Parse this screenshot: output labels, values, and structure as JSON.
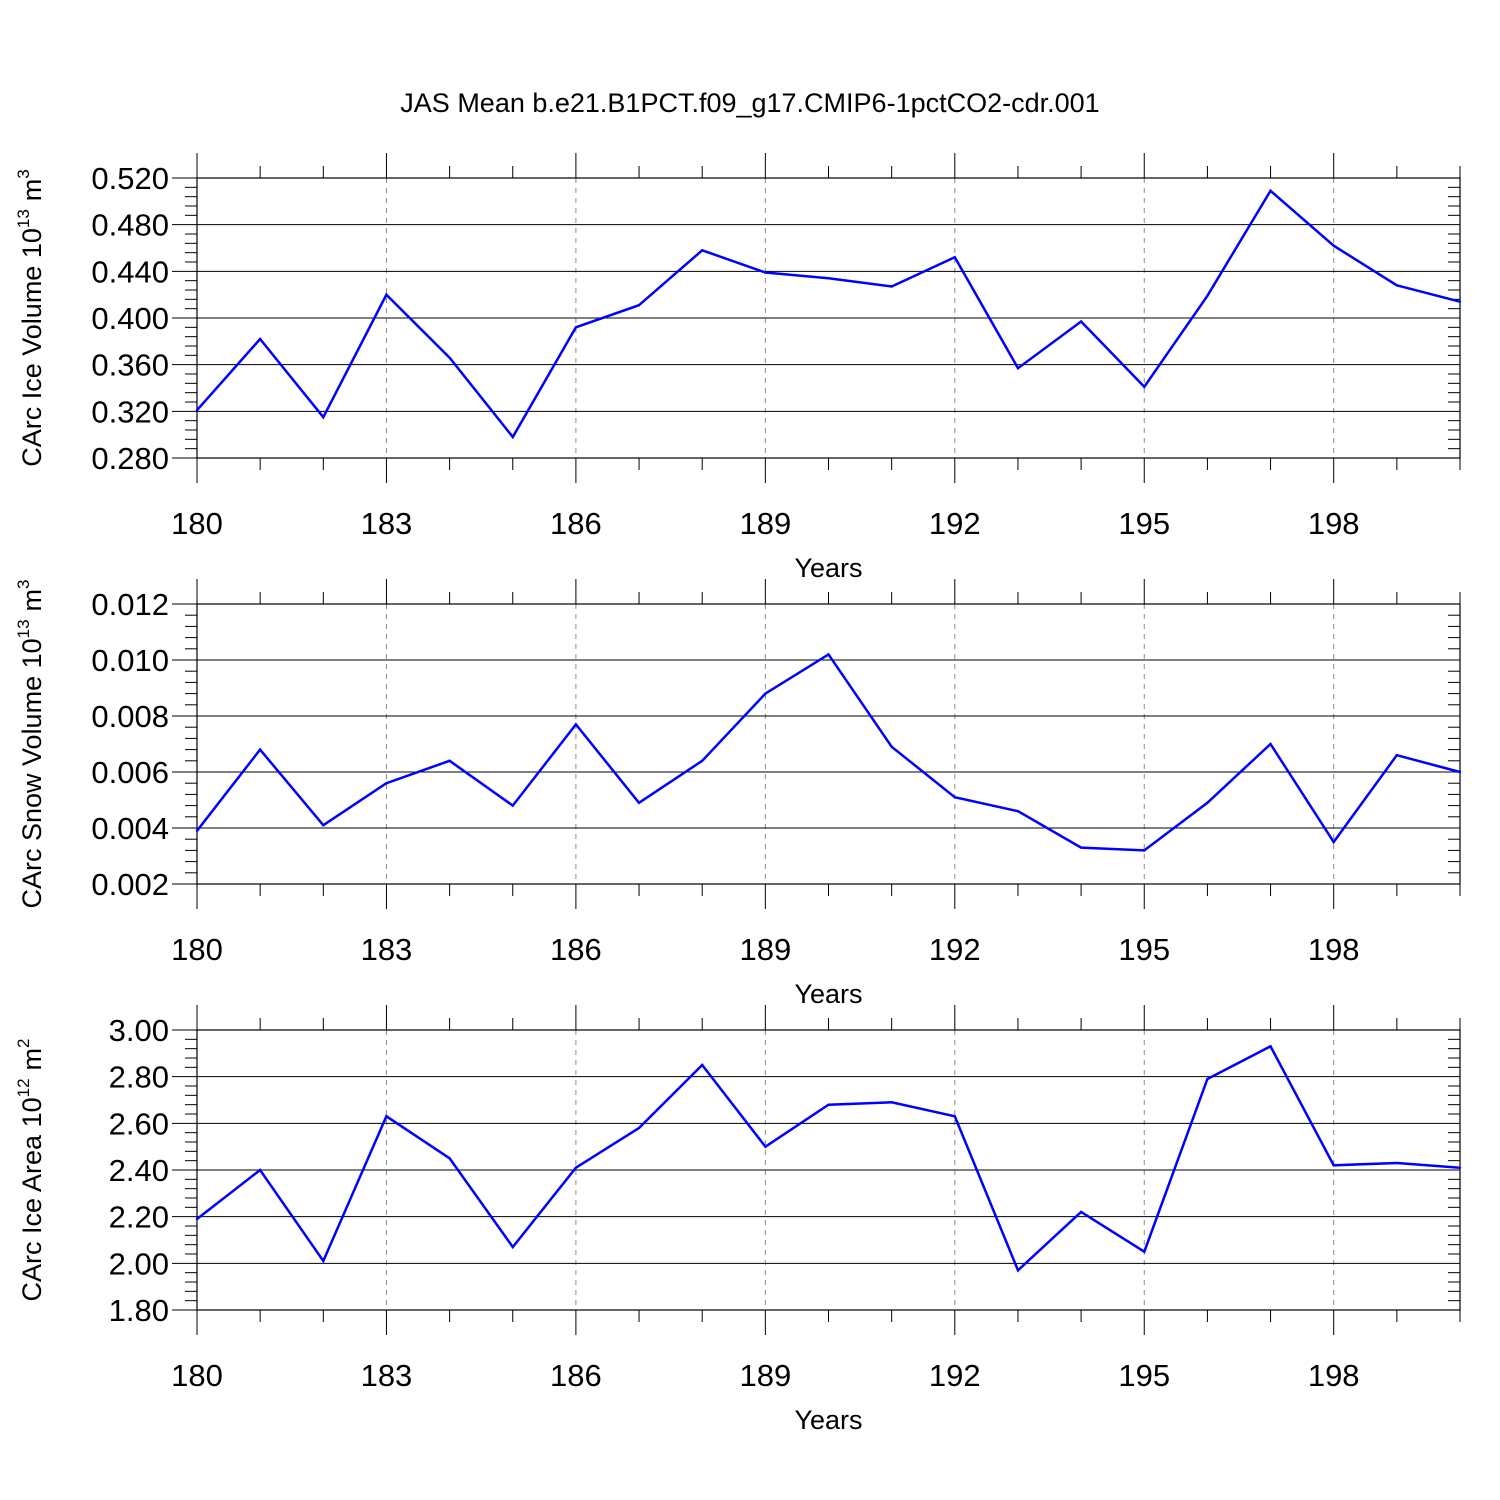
{
  "title": "JAS Mean b.e21.B1PCT.f09_g17.CMIP6-1pctCO2-cdr.001",
  "colors": {
    "series": "#0000ff",
    "axis": "#000000",
    "grid": "#888888"
  },
  "chart_data": [
    {
      "type": "line",
      "ylabel": "CArc Ice Volume 10",
      "ylabel_sup": "13",
      "ylabel_unit": "m",
      "ylabel_unit_sup": "3",
      "xlabel": "Years",
      "xlim": [
        180,
        200
      ],
      "ylim": [
        0.28,
        0.52
      ],
      "yticks": [
        0.28,
        0.32,
        0.36,
        0.4,
        0.44,
        0.48,
        0.52
      ],
      "ytick_labels": [
        "0.280",
        "0.320",
        "0.360",
        "0.400",
        "0.440",
        "0.480",
        "0.520"
      ],
      "xticks": [
        180,
        183,
        186,
        189,
        192,
        195,
        198
      ],
      "xtick_labels": [
        "180",
        "183",
        "186",
        "189",
        "192",
        "195",
        "198"
      ],
      "grid": "vertical-dashed",
      "x": [
        180,
        181,
        182,
        183,
        184,
        185,
        186,
        187,
        188,
        189,
        190,
        191,
        192,
        193,
        194,
        195,
        196,
        197,
        198,
        199,
        200
      ],
      "values": [
        0.321,
        0.382,
        0.315,
        0.42,
        0.366,
        0.298,
        0.392,
        0.411,
        0.458,
        0.439,
        0.434,
        0.427,
        0.452,
        0.357,
        0.397,
        0.341,
        0.419,
        0.509,
        0.462,
        0.428,
        0.414
      ]
    },
    {
      "type": "line",
      "ylabel": "CArc Snow Volume 10",
      "ylabel_sup": "13",
      "ylabel_unit": "m",
      "ylabel_unit_sup": "3",
      "xlabel": "Years",
      "xlim": [
        180,
        200
      ],
      "ylim": [
        0.002,
        0.012
      ],
      "yticks": [
        0.002,
        0.004,
        0.006,
        0.008,
        0.01,
        0.012
      ],
      "ytick_labels": [
        "0.002",
        "0.004",
        "0.006",
        "0.008",
        "0.010",
        "0.012"
      ],
      "xticks": [
        180,
        183,
        186,
        189,
        192,
        195,
        198
      ],
      "xtick_labels": [
        "180",
        "183",
        "186",
        "189",
        "192",
        "195",
        "198"
      ],
      "grid": "vertical-dashed",
      "x": [
        180,
        181,
        182,
        183,
        184,
        185,
        186,
        187,
        188,
        189,
        190,
        191,
        192,
        193,
        194,
        195,
        196,
        197,
        198,
        199,
        200
      ],
      "values": [
        0.0039,
        0.0068,
        0.0041,
        0.0056,
        0.0064,
        0.0048,
        0.0077,
        0.0049,
        0.0064,
        0.0088,
        0.0102,
        0.0069,
        0.0051,
        0.0046,
        0.0033,
        0.0032,
        0.0049,
        0.007,
        0.0035,
        0.0066,
        0.006
      ]
    },
    {
      "type": "line",
      "ylabel": "CArc Ice Area 10",
      "ylabel_sup": "12",
      "ylabel_unit": "m",
      "ylabel_unit_sup": "2",
      "xlabel": "Years",
      "xlim": [
        180,
        200
      ],
      "ylim": [
        1.8,
        3.0
      ],
      "yticks": [
        1.8,
        2.0,
        2.2,
        2.4,
        2.6,
        2.8,
        3.0
      ],
      "ytick_labels": [
        "1.80",
        "2.00",
        "2.20",
        "2.40",
        "2.60",
        "2.80",
        "3.00"
      ],
      "xticks": [
        180,
        183,
        186,
        189,
        192,
        195,
        198
      ],
      "xtick_labels": [
        "180",
        "183",
        "186",
        "189",
        "192",
        "195",
        "198"
      ],
      "grid": "vertical-dashed",
      "x": [
        180,
        181,
        182,
        183,
        184,
        185,
        186,
        187,
        188,
        189,
        190,
        191,
        192,
        193,
        194,
        195,
        196,
        197,
        198,
        199,
        200
      ],
      "values": [
        2.19,
        2.4,
        2.01,
        2.63,
        2.45,
        2.07,
        2.41,
        2.58,
        2.85,
        2.5,
        2.68,
        2.69,
        2.63,
        1.97,
        2.22,
        2.05,
        2.79,
        2.93,
        2.42,
        2.43,
        2.41
      ]
    }
  ]
}
